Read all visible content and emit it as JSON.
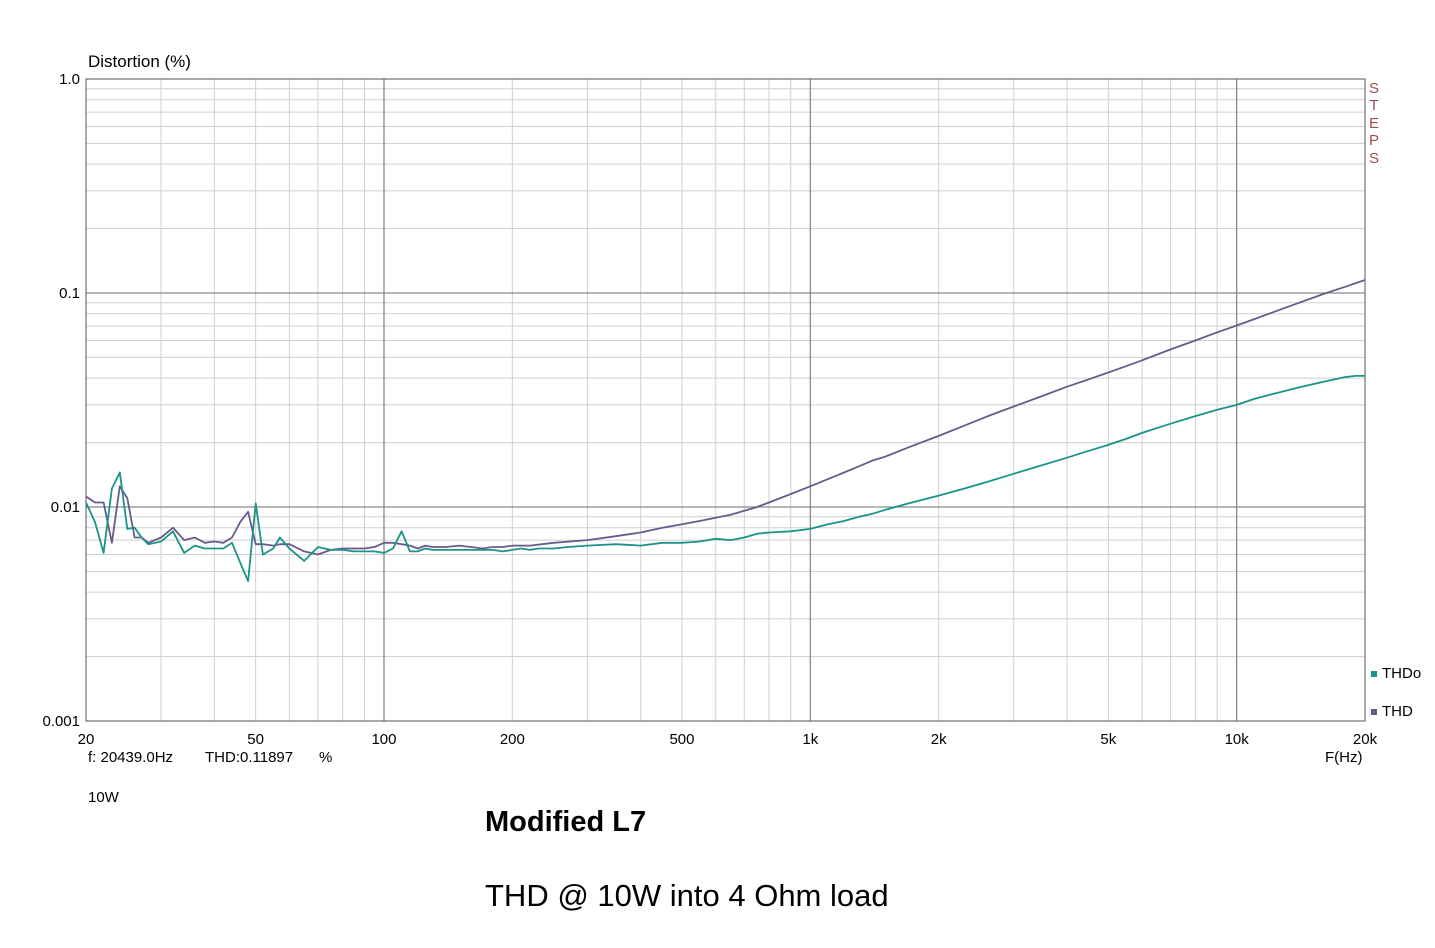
{
  "chart_data": {
    "type": "line",
    "ylabel": "Distortion (%)",
    "xlabel": "F(Hz)",
    "x_scale": "log",
    "y_scale": "log",
    "xlim": [
      20,
      20000
    ],
    "ylim": [
      0.001,
      1.0
    ],
    "grid": true,
    "x_ticks": [
      {
        "value": 20,
        "label": "20"
      },
      {
        "value": 50,
        "label": "50"
      },
      {
        "value": 100,
        "label": "100"
      },
      {
        "value": 200,
        "label": "200"
      },
      {
        "value": 500,
        "label": "500"
      },
      {
        "value": 1000,
        "label": "1k"
      },
      {
        "value": 2000,
        "label": "2k"
      },
      {
        "value": 5000,
        "label": "5k"
      },
      {
        "value": 10000,
        "label": "10k"
      },
      {
        "value": 20000,
        "label": "20k"
      }
    ],
    "y_ticks": [
      {
        "value": 1.0,
        "label": "1.0"
      },
      {
        "value": 0.1,
        "label": "0.1"
      },
      {
        "value": 0.01,
        "label": "0.01"
      },
      {
        "value": 0.001,
        "label": "0.001"
      }
    ],
    "series": [
      {
        "name": "THDo",
        "color": "#1a9488",
        "x": [
          20,
          21,
          22,
          23,
          24,
          25,
          26,
          27,
          28,
          30,
          32,
          34,
          36,
          38,
          40,
          42,
          44,
          46,
          48,
          50,
          52,
          55,
          57,
          60,
          65,
          70,
          75,
          80,
          85,
          90,
          95,
          100,
          105,
          110,
          115,
          120,
          125,
          130,
          140,
          150,
          160,
          170,
          180,
          190,
          200,
          210,
          220,
          230,
          240,
          250,
          270,
          300,
          350,
          400,
          450,
          500,
          550,
          600,
          650,
          700,
          750,
          800,
          900,
          1000,
          1100,
          1200,
          1300,
          1400,
          1500,
          1700,
          2000,
          2300,
          2600,
          3000,
          3500,
          4000,
          4500,
          5000,
          5500,
          6000,
          7000,
          8000,
          9000,
          10000,
          11000,
          12000,
          14000,
          16000,
          18000,
          19000,
          20000
        ],
        "values": [
          0.0105,
          0.0085,
          0.0061,
          0.0122,
          0.0145,
          0.0079,
          0.008,
          0.0072,
          0.0067,
          0.0069,
          0.0077,
          0.0061,
          0.0066,
          0.0064,
          0.0064,
          0.0064,
          0.0068,
          0.0055,
          0.0045,
          0.0104,
          0.006,
          0.0064,
          0.0072,
          0.0064,
          0.0056,
          0.0065,
          0.0063,
          0.0063,
          0.0062,
          0.0062,
          0.0062,
          0.0061,
          0.0064,
          0.0077,
          0.0062,
          0.0062,
          0.0064,
          0.0063,
          0.0063,
          0.0063,
          0.0063,
          0.0063,
          0.0063,
          0.0062,
          0.0063,
          0.0064,
          0.0063,
          0.0064,
          0.0064,
          0.0064,
          0.0065,
          0.0066,
          0.0067,
          0.0066,
          0.0068,
          0.0068,
          0.0069,
          0.0071,
          0.007,
          0.0072,
          0.0075,
          0.0076,
          0.0077,
          0.0079,
          0.0083,
          0.0086,
          0.009,
          0.0093,
          0.0097,
          0.0104,
          0.0113,
          0.0122,
          0.0131,
          0.0143,
          0.0157,
          0.017,
          0.0183,
          0.0195,
          0.0208,
          0.0222,
          0.0245,
          0.0266,
          0.0285,
          0.03,
          0.032,
          0.0335,
          0.0362,
          0.0385,
          0.0405,
          0.041,
          0.041
        ]
      },
      {
        "name": "THD",
        "color": "#6a5a8c",
        "x": [
          20,
          21,
          22,
          23,
          24,
          25,
          26,
          27,
          28,
          30,
          32,
          34,
          36,
          38,
          40,
          42,
          44,
          46,
          48,
          50,
          52,
          55,
          57,
          60,
          65,
          70,
          75,
          80,
          85,
          90,
          95,
          100,
          105,
          110,
          115,
          120,
          125,
          130,
          140,
          150,
          160,
          170,
          180,
          190,
          200,
          220,
          250,
          300,
          350,
          400,
          450,
          500,
          550,
          600,
          650,
          700,
          750,
          800,
          900,
          1000,
          1100,
          1200,
          1300,
          1400,
          1500,
          1700,
          2000,
          2300,
          2600,
          3000,
          3500,
          4000,
          4500,
          5000,
          5500,
          6000,
          7000,
          8000,
          9000,
          10000,
          11000,
          12000,
          14000,
          16000,
          18000,
          20000
        ],
        "values": [
          0.0112,
          0.0105,
          0.0105,
          0.0068,
          0.0125,
          0.011,
          0.0072,
          0.0072,
          0.0068,
          0.0072,
          0.008,
          0.007,
          0.0072,
          0.0068,
          0.0069,
          0.0068,
          0.0072,
          0.0085,
          0.0095,
          0.0067,
          0.0067,
          0.0066,
          0.0067,
          0.0067,
          0.0062,
          0.006,
          0.0063,
          0.0064,
          0.0064,
          0.0064,
          0.0065,
          0.0068,
          0.0068,
          0.0067,
          0.0066,
          0.0064,
          0.0066,
          0.0065,
          0.0065,
          0.0066,
          0.0065,
          0.0064,
          0.0065,
          0.0065,
          0.0066,
          0.0066,
          0.0068,
          0.007,
          0.0073,
          0.0076,
          0.008,
          0.0083,
          0.0086,
          0.0089,
          0.0092,
          0.0096,
          0.01,
          0.0105,
          0.0115,
          0.0125,
          0.0135,
          0.0145,
          0.0155,
          0.0165,
          0.0172,
          0.019,
          0.0215,
          0.024,
          0.0265,
          0.0295,
          0.033,
          0.0365,
          0.0395,
          0.0425,
          0.0455,
          0.0485,
          0.0545,
          0.06,
          0.0655,
          0.0705,
          0.0755,
          0.0805,
          0.09,
          0.099,
          0.107,
          0.115
        ]
      }
    ],
    "legend": "right-bottom",
    "steps_label": [
      "S",
      "T",
      "E",
      "P",
      "S"
    ],
    "steps_color": "#9b4f4f"
  },
  "readout": {
    "freq": "f: 20439.0Hz",
    "thd": "THD:0.11897",
    "unit": "%"
  },
  "power": "10W",
  "title": "Modified L7",
  "subtitle": "THD @ 10W into 4 Ohm load"
}
